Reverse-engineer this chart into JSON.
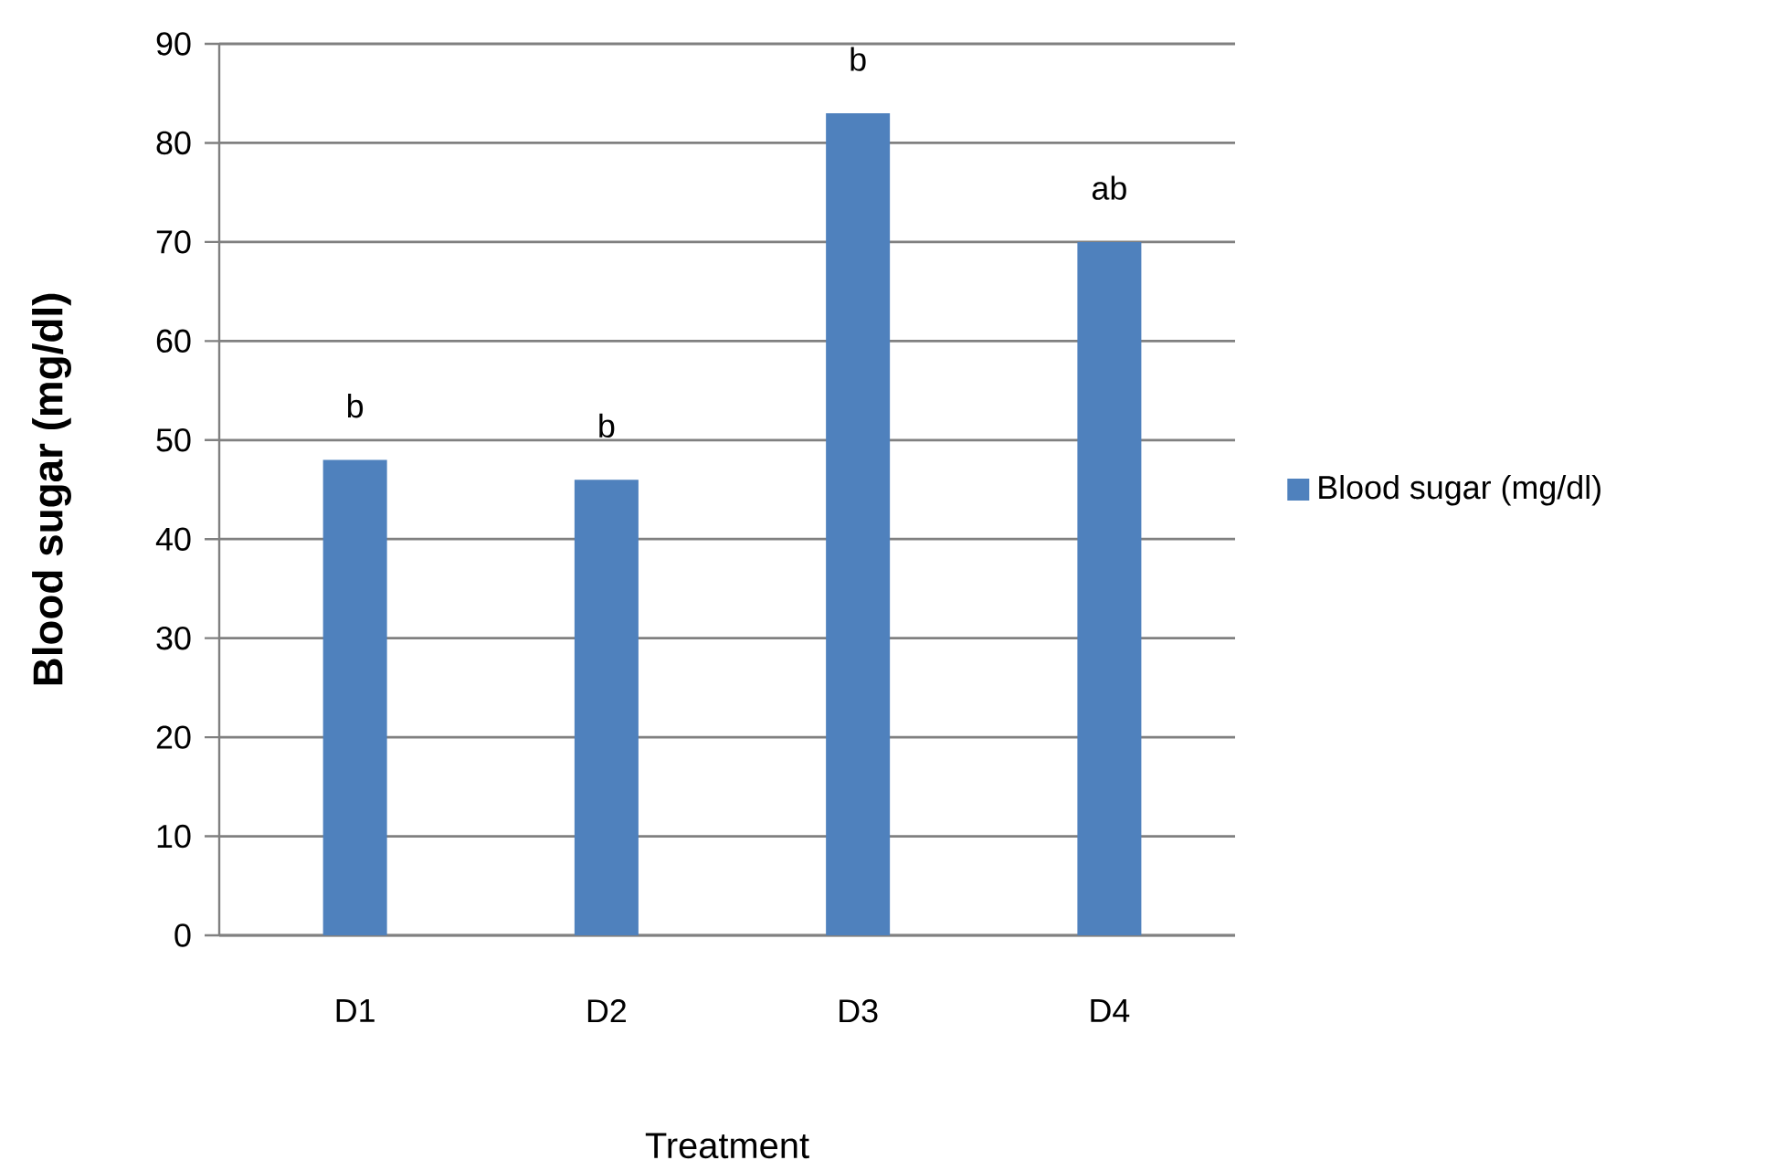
{
  "chart_data": {
    "type": "bar",
    "xlabel": "Treatment",
    "ylabel": "Blood sugar (mg/dl)",
    "categories": [
      "D1",
      "D2",
      "D3",
      "D4"
    ],
    "series": [
      {
        "name": "Blood sugar (mg/dl)",
        "color": "#4f81bd",
        "values": [
          48,
          46,
          83,
          70
        ]
      }
    ],
    "ylim": [
      0,
      90
    ],
    "yticks": [
      0,
      10,
      20,
      30,
      40,
      50,
      60,
      70,
      80,
      90
    ],
    "grid": "y",
    "legend": "right",
    "annotations": [
      {
        "text": "b",
        "x": "D1",
        "y": 48
      },
      {
        "text": "b",
        "x": "D2",
        "y": 46
      },
      {
        "text": "b",
        "x": "D3",
        "y": 83
      },
      {
        "text": "ab",
        "x": "D4",
        "y": 70
      }
    ]
  }
}
